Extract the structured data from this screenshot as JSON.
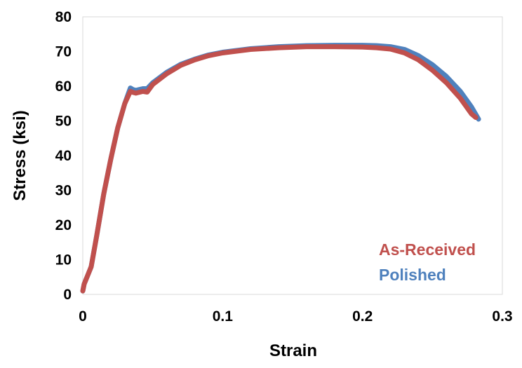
{
  "chart_data": {
    "type": "line",
    "title": "",
    "xlabel": "Strain",
    "ylabel": "Stress (ksi)",
    "xlim": [
      0,
      0.3
    ],
    "ylim": [
      0,
      80
    ],
    "x_ticks": [
      "0",
      "0.1",
      "0.2",
      "0.3"
    ],
    "y_ticks": [
      "0",
      "10",
      "20",
      "30",
      "40",
      "50",
      "60",
      "70",
      "80"
    ],
    "grid": false,
    "legend_position": "bottom-right",
    "series": [
      {
        "name": "Polished",
        "color": "#4f81bd",
        "x": [
          0,
          0.001,
          0.003,
          0.006,
          0.01,
          0.015,
          0.02,
          0.025,
          0.03,
          0.034,
          0.036,
          0.038,
          0.04,
          0.043,
          0.046,
          0.05,
          0.06,
          0.07,
          0.08,
          0.09,
          0.1,
          0.12,
          0.14,
          0.16,
          0.18,
          0.2,
          0.21,
          0.22,
          0.23,
          0.24,
          0.25,
          0.26,
          0.27,
          0.278,
          0.283
        ],
        "y": [
          1,
          3,
          5,
          8,
          17,
          29,
          39,
          48,
          55,
          59.5,
          59,
          58.8,
          59,
          59.3,
          59.3,
          61,
          64,
          66.3,
          67.8,
          69,
          69.8,
          70.8,
          71.4,
          71.7,
          71.8,
          71.8,
          71.7,
          71.4,
          70.6,
          68.8,
          66.2,
          62.8,
          58.5,
          54,
          50.5
        ]
      },
      {
        "name": "As-Received",
        "color": "#c0504d",
        "x": [
          0,
          0.001,
          0.003,
          0.006,
          0.01,
          0.015,
          0.02,
          0.025,
          0.03,
          0.034,
          0.036,
          0.038,
          0.04,
          0.043,
          0.046,
          0.05,
          0.06,
          0.07,
          0.08,
          0.09,
          0.1,
          0.12,
          0.14,
          0.16,
          0.18,
          0.2,
          0.21,
          0.22,
          0.23,
          0.24,
          0.25,
          0.26,
          0.27,
          0.278,
          0.281
        ],
        "y": [
          1,
          3,
          5,
          8,
          17,
          29,
          39,
          48,
          55,
          58.5,
          58.2,
          58,
          58.2,
          58.5,
          58.3,
          60.5,
          63.6,
          66,
          67.6,
          68.8,
          69.6,
          70.6,
          71.1,
          71.4,
          71.4,
          71.3,
          71.1,
          70.7,
          69.6,
          67.6,
          64.6,
          61,
          56.5,
          52,
          51
        ]
      }
    ]
  },
  "legend": {
    "entries": [
      {
        "label": "As-Received",
        "color": "#c0504d"
      },
      {
        "label": "Polished",
        "color": "#4f81bd"
      }
    ]
  }
}
